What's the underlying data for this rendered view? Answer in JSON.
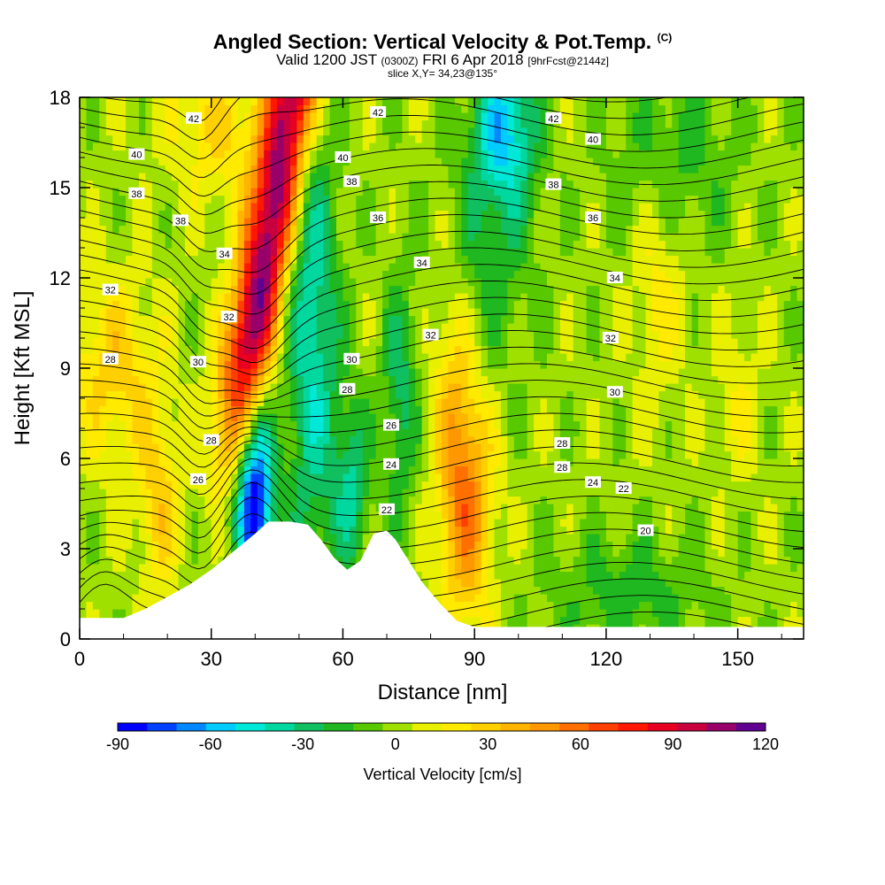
{
  "header": {
    "title": "Angled Section: Vertical Velocity & Pot.Temp.",
    "title_mark": "(C)",
    "valid_pre": "Valid 1200 JST",
    "valid_utc": "(0300Z)",
    "valid_date": "FRI 6 Apr 2018",
    "valid_fcst": "[9hrFcst@2144z]",
    "slice": "slice X,Y= 34,23@135°"
  },
  "chart_data": {
    "type": "heatmap",
    "xlabel": "Distance [nm]",
    "ylabel": "Height [Kft MSL]",
    "xlim": [
      0,
      165
    ],
    "ylim": [
      0,
      18
    ],
    "xticks": [
      "0",
      "30",
      "60",
      "90",
      "120",
      "150"
    ],
    "yticks": [
      "0",
      "3",
      "6",
      "9",
      "12",
      "15",
      "18"
    ],
    "colorbar": {
      "label": "Vertical Velocity [cm/s]",
      "min": -90,
      "max": 120,
      "step": 10,
      "tick_labels": [
        "-90",
        "-60",
        "-30",
        "0",
        "30",
        "60",
        "90",
        "120"
      ],
      "colors": [
        "#0000ff",
        "#0040ff",
        "#0088ff",
        "#00ccff",
        "#00e8d8",
        "#00d8a0",
        "#10c060",
        "#20b820",
        "#58c800",
        "#a0e000",
        "#e8f000",
        "#ffea00",
        "#ffd000",
        "#ffb400",
        "#ff9800",
        "#ff7000",
        "#ff4000",
        "#ff1800",
        "#e80020",
        "#c80040",
        "#98006a",
        "#600090"
      ]
    },
    "terrain": [
      [
        0,
        0.7
      ],
      [
        5,
        0.7
      ],
      [
        10,
        0.7
      ],
      [
        15,
        1.0
      ],
      [
        20,
        1.4
      ],
      [
        25,
        1.8
      ],
      [
        30,
        2.3
      ],
      [
        35,
        2.9
      ],
      [
        40,
        3.5
      ],
      [
        43,
        3.9
      ],
      [
        48,
        3.9
      ],
      [
        52,
        3.8
      ],
      [
        55,
        3.3
      ],
      [
        58,
        2.7
      ],
      [
        61,
        2.3
      ],
      [
        64,
        2.6
      ],
      [
        67,
        3.5
      ],
      [
        70,
        3.6
      ],
      [
        72,
        3.3
      ],
      [
        75,
        2.6
      ],
      [
        78,
        1.9
      ],
      [
        82,
        1.2
      ],
      [
        86,
        0.6
      ],
      [
        90,
        0.4
      ],
      [
        95,
        0.4
      ],
      [
        165,
        0.4
      ]
    ],
    "temp_labels": [
      {
        "value": "42",
        "x": 26,
        "y": 17.3
      },
      {
        "value": "40",
        "x": 13,
        "y": 16.1
      },
      {
        "value": "38",
        "x": 13,
        "y": 14.8
      },
      {
        "value": "38",
        "x": 23,
        "y": 13.9
      },
      {
        "value": "34",
        "x": 33,
        "y": 12.8
      },
      {
        "value": "32",
        "x": 7,
        "y": 11.6
      },
      {
        "value": "32",
        "x": 34,
        "y": 10.7
      },
      {
        "value": "30",
        "x": 27,
        "y": 9.2
      },
      {
        "value": "28",
        "x": 7,
        "y": 9.3
      },
      {
        "value": "28",
        "x": 30,
        "y": 6.6
      },
      {
        "value": "26",
        "x": 27,
        "y": 5.3
      },
      {
        "value": "42",
        "x": 68,
        "y": 17.5
      },
      {
        "value": "40",
        "x": 60,
        "y": 16.0
      },
      {
        "value": "38",
        "x": 62,
        "y": 15.2
      },
      {
        "value": "36",
        "x": 68,
        "y": 14.0
      },
      {
        "value": "34",
        "x": 78,
        "y": 12.5
      },
      {
        "value": "32",
        "x": 80,
        "y": 10.1
      },
      {
        "value": "30",
        "x": 62,
        "y": 9.3
      },
      {
        "value": "28",
        "x": 61,
        "y": 8.3
      },
      {
        "value": "26",
        "x": 71,
        "y": 7.1
      },
      {
        "value": "24",
        "x": 71,
        "y": 5.8
      },
      {
        "value": "22",
        "x": 70,
        "y": 4.3
      },
      {
        "value": "42",
        "x": 108,
        "y": 17.3
      },
      {
        "value": "40",
        "x": 117,
        "y": 16.6
      },
      {
        "value": "38",
        "x": 108,
        "y": 15.1
      },
      {
        "value": "36",
        "x": 117,
        "y": 14.0
      },
      {
        "value": "34",
        "x": 122,
        "y": 12.0
      },
      {
        "value": "32",
        "x": 121,
        "y": 10.0
      },
      {
        "value": "30",
        "x": 122,
        "y": 8.2
      },
      {
        "value": "28",
        "x": 110,
        "y": 6.5
      },
      {
        "value": "28",
        "x": 110,
        "y": 5.7
      },
      {
        "value": "24",
        "x": 117,
        "y": 5.2
      },
      {
        "value": "22",
        "x": 124,
        "y": 5.0
      },
      {
        "value": "20",
        "x": 129,
        "y": 3.6
      }
    ]
  }
}
